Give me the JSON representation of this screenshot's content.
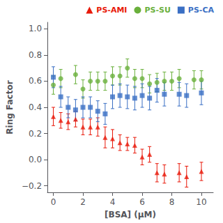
{
  "chart_data": {
    "type": "scatter",
    "xlabel": "[BSA] (μM)",
    "ylabel": "Ring Factor",
    "xlim": [
      -0.4,
      10.8
    ],
    "ylim": [
      -0.25,
      1.05
    ],
    "xticks": [
      0,
      2,
      4,
      6,
      8,
      10
    ],
    "yticks": [
      {
        "value": -0.2,
        "label": "−0.2"
      },
      {
        "value": 0.0,
        "label": "0.0"
      },
      0.2,
      0.4,
      0.6,
      0.8,
      {
        "value": 1.0,
        "label": "1.0"
      }
    ],
    "grid": false,
    "legend": "upper right",
    "background_color": "#ffffff",
    "series": [
      {
        "name": "PS-AMI",
        "color": "#e8190a",
        "marker": "triangle",
        "x": [
          0.0,
          0.5,
          1.0,
          1.5,
          2.0,
          2.5,
          3.0,
          3.5,
          4.0,
          4.5,
          5.0,
          5.5,
          6.0,
          6.5,
          7.0,
          7.5,
          8.5,
          9.0,
          10.0
        ],
        "values": [
          0.33,
          0.3,
          0.29,
          0.31,
          0.25,
          0.25,
          0.25,
          0.17,
          0.16,
          0.13,
          0.12,
          0.11,
          0.02,
          0.04,
          -0.1,
          -0.11,
          -0.1,
          -0.13,
          -0.09
        ],
        "yerr": [
          0.07,
          0.06,
          0.06,
          0.06,
          0.06,
          0.06,
          0.07,
          0.08,
          0.07,
          0.06,
          0.05,
          0.06,
          0.06,
          0.06,
          0.07,
          0.07,
          0.07,
          0.08,
          0.07
        ]
      },
      {
        "name": "PS-SU",
        "color": "#6ab03c",
        "marker": "circle",
        "x": [
          0.0,
          0.5,
          1.5,
          2.0,
          2.5,
          3.0,
          3.5,
          4.0,
          4.5,
          5.0,
          5.5,
          6.0,
          6.5,
          7.0,
          7.5,
          8.0,
          8.5,
          9.5,
          10.0
        ],
        "values": [
          0.57,
          0.62,
          0.65,
          0.54,
          0.6,
          0.6,
          0.6,
          0.64,
          0.64,
          0.7,
          0.62,
          0.62,
          0.58,
          0.59,
          0.6,
          0.6,
          0.62,
          0.61,
          0.61
        ],
        "yerr": [
          0.07,
          0.07,
          0.07,
          0.07,
          0.07,
          0.07,
          0.07,
          0.07,
          0.07,
          0.07,
          0.07,
          0.07,
          0.07,
          0.07,
          0.07,
          0.07,
          0.07,
          0.07,
          0.07
        ]
      },
      {
        "name": "PS-CA",
        "color": "#3a6fc4",
        "marker": "square",
        "x": [
          0.0,
          0.5,
          1.0,
          1.5,
          2.0,
          2.5,
          3.0,
          3.5,
          4.0,
          4.5,
          5.0,
          5.5,
          6.0,
          6.5,
          7.0,
          7.5,
          8.5,
          9.0,
          10.0
        ],
        "values": [
          0.63,
          0.48,
          0.4,
          0.38,
          0.4,
          0.4,
          0.37,
          0.35,
          0.48,
          0.49,
          0.48,
          0.47,
          0.49,
          0.47,
          0.53,
          0.5,
          0.5,
          0.49,
          0.51
        ],
        "yerr": [
          0.08,
          0.08,
          0.08,
          0.08,
          0.08,
          0.08,
          0.08,
          0.08,
          0.09,
          0.09,
          0.09,
          0.09,
          0.09,
          0.09,
          0.09,
          0.09,
          0.09,
          0.09,
          0.09
        ]
      }
    ]
  }
}
